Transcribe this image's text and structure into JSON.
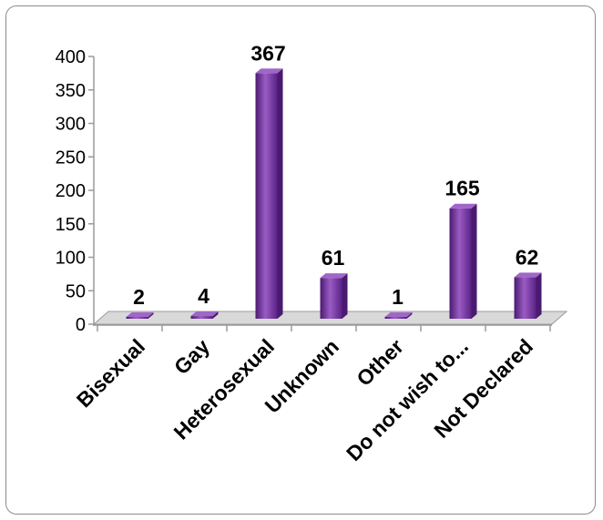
{
  "chart_data": {
    "type": "bar",
    "title": "",
    "xlabel": "",
    "ylabel": "",
    "categories": [
      "Bisexual",
      "Gay",
      "Heterosexual",
      "Unknown",
      "Other",
      "Do not wish to...",
      "Not Declared"
    ],
    "values": [
      2,
      4,
      367,
      61,
      1,
      165,
      62
    ],
    "data_labels": [
      "2",
      "4",
      "367",
      "61",
      "1",
      "165",
      "62"
    ],
    "ylim": [
      0,
      400
    ],
    "yticks": [
      "0",
      "50",
      "100",
      "150",
      "200",
      "250",
      "300",
      "350",
      "400"
    ],
    "grid": false,
    "legend": "none",
    "style": "3d",
    "colors": {
      "bar": "#7030a0",
      "bar_light": "#a066c8",
      "bar_dark": "#4a1a70",
      "axis": "#9a9a9a",
      "floor": "#d9d9d9"
    }
  }
}
